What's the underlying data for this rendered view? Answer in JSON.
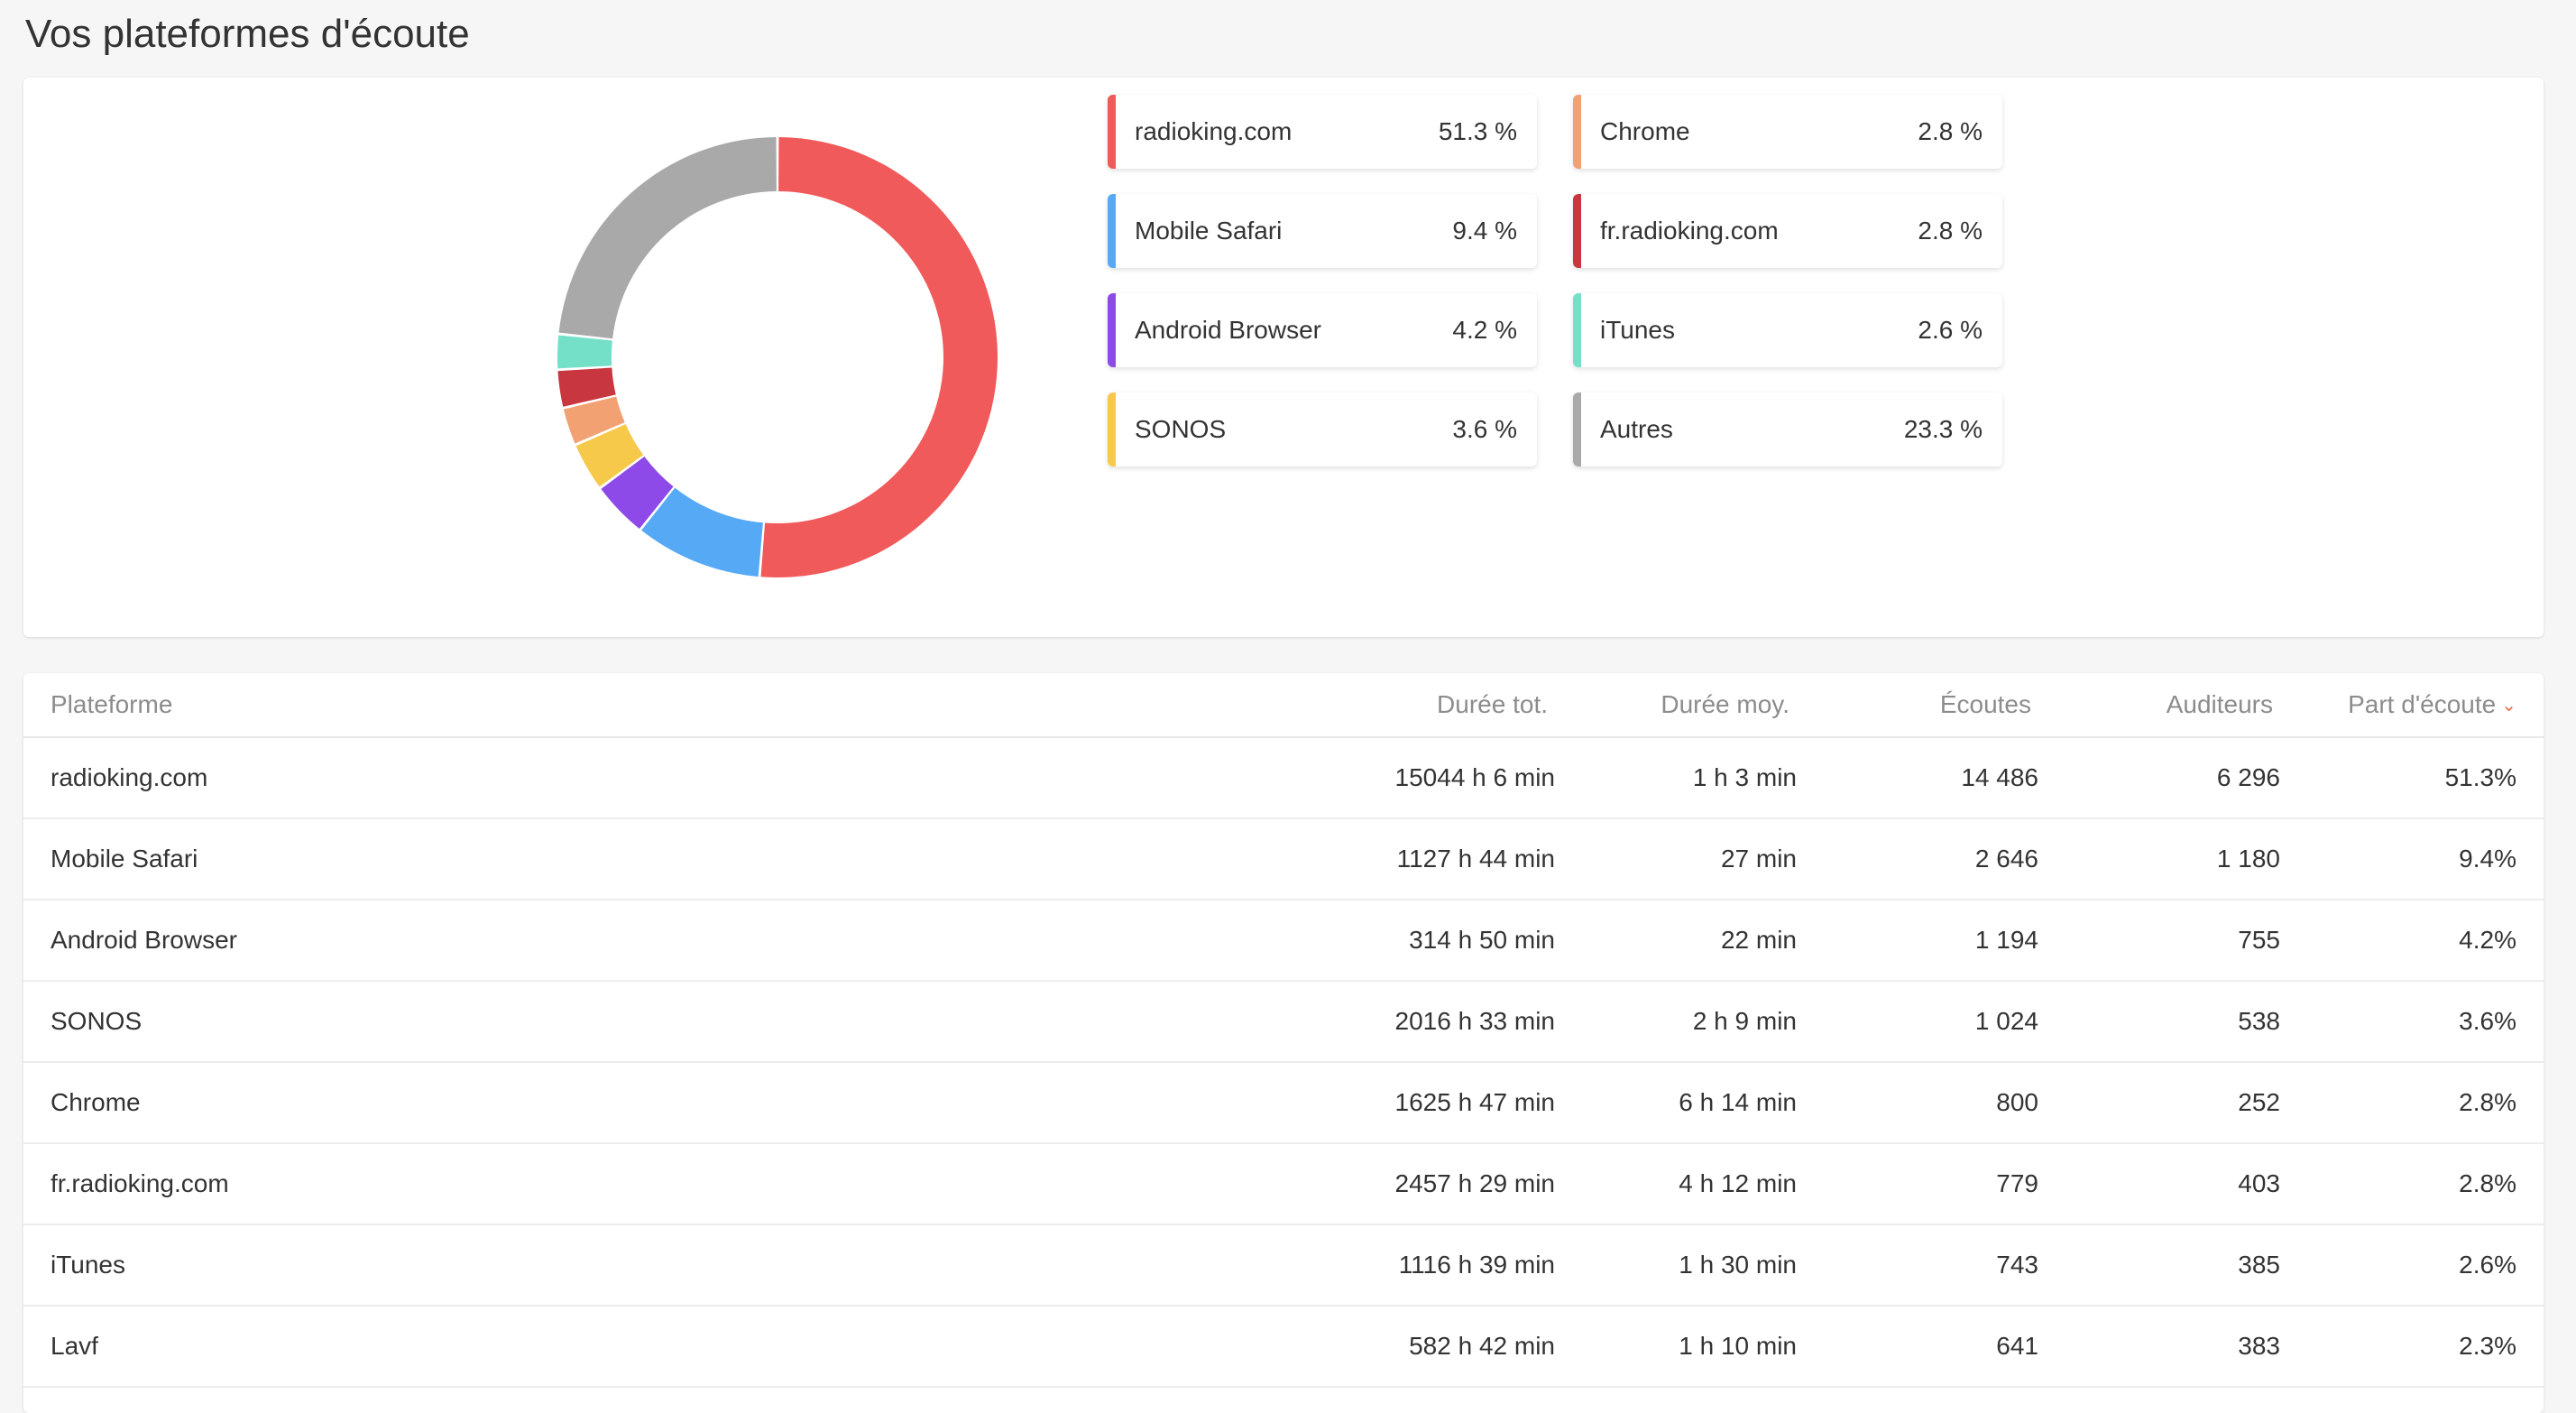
{
  "header": {
    "title": "Vos plateformes d'écoute"
  },
  "chart_data": {
    "type": "pie",
    "categories": [
      "radioking.com",
      "Mobile Safari",
      "Android Browser",
      "SONOS",
      "Chrome",
      "fr.radioking.com",
      "iTunes",
      "Autres"
    ],
    "values": [
      51.3,
      9.4,
      4.2,
      3.6,
      2.8,
      2.8,
      2.6,
      23.3
    ],
    "colors": [
      "#f05a5a",
      "#55a9f5",
      "#8e4ae8",
      "#f7c94a",
      "#f2a173",
      "#c8363f",
      "#75e0c8",
      "#a9a9a9"
    ],
    "donut": true
  },
  "legend": [
    {
      "name": "radioking.com",
      "pct": "51.3 %"
    },
    {
      "name": "Mobile Safari",
      "pct": "9.4 %"
    },
    {
      "name": "Android Browser",
      "pct": "4.2 %"
    },
    {
      "name": "SONOS",
      "pct": "3.6 %"
    },
    {
      "name": "Chrome",
      "pct": "2.8 %"
    },
    {
      "name": "fr.radioking.com",
      "pct": "2.8 %"
    },
    {
      "name": "iTunes",
      "pct": "2.6 %"
    },
    {
      "name": "Autres",
      "pct": "23.3 %"
    }
  ],
  "table": {
    "headers": {
      "plateforme": "Plateforme",
      "duree_tot": "Durée tot.",
      "duree_moy": "Durée moy.",
      "ecoutes": "Écoutes",
      "auditeurs": "Auditeurs",
      "part": "Part d'écoute"
    },
    "sort_icon": "chevron-down-icon",
    "rows": [
      {
        "name": "radioking.com",
        "tot": "15044 h 6 min",
        "moy": "1 h 3 min",
        "ecoutes": "14 486",
        "auditeurs": "6 296",
        "part": "51.3%"
      },
      {
        "name": "Mobile Safari",
        "tot": "1127 h 44 min",
        "moy": "27 min",
        "ecoutes": "2 646",
        "auditeurs": "1 180",
        "part": "9.4%"
      },
      {
        "name": "Android Browser",
        "tot": "314 h 50 min",
        "moy": "22 min",
        "ecoutes": "1 194",
        "auditeurs": "755",
        "part": "4.2%"
      },
      {
        "name": "SONOS",
        "tot": "2016 h 33 min",
        "moy": "2 h 9 min",
        "ecoutes": "1 024",
        "auditeurs": "538",
        "part": "3.6%"
      },
      {
        "name": "Chrome",
        "tot": "1625 h 47 min",
        "moy": "6 h 14 min",
        "ecoutes": "800",
        "auditeurs": "252",
        "part": "2.8%"
      },
      {
        "name": "fr.radioking.com",
        "tot": "2457 h 29 min",
        "moy": "4 h 12 min",
        "ecoutes": "779",
        "auditeurs": "403",
        "part": "2.8%"
      },
      {
        "name": "iTunes",
        "tot": "1116 h 39 min",
        "moy": "1 h 30 min",
        "ecoutes": "743",
        "auditeurs": "385",
        "part": "2.6%"
      },
      {
        "name": "Lavf",
        "tot": "582 h 42 min",
        "moy": "1 h 10 min",
        "ecoutes": "641",
        "auditeurs": "383",
        "part": "2.3%"
      }
    ]
  }
}
